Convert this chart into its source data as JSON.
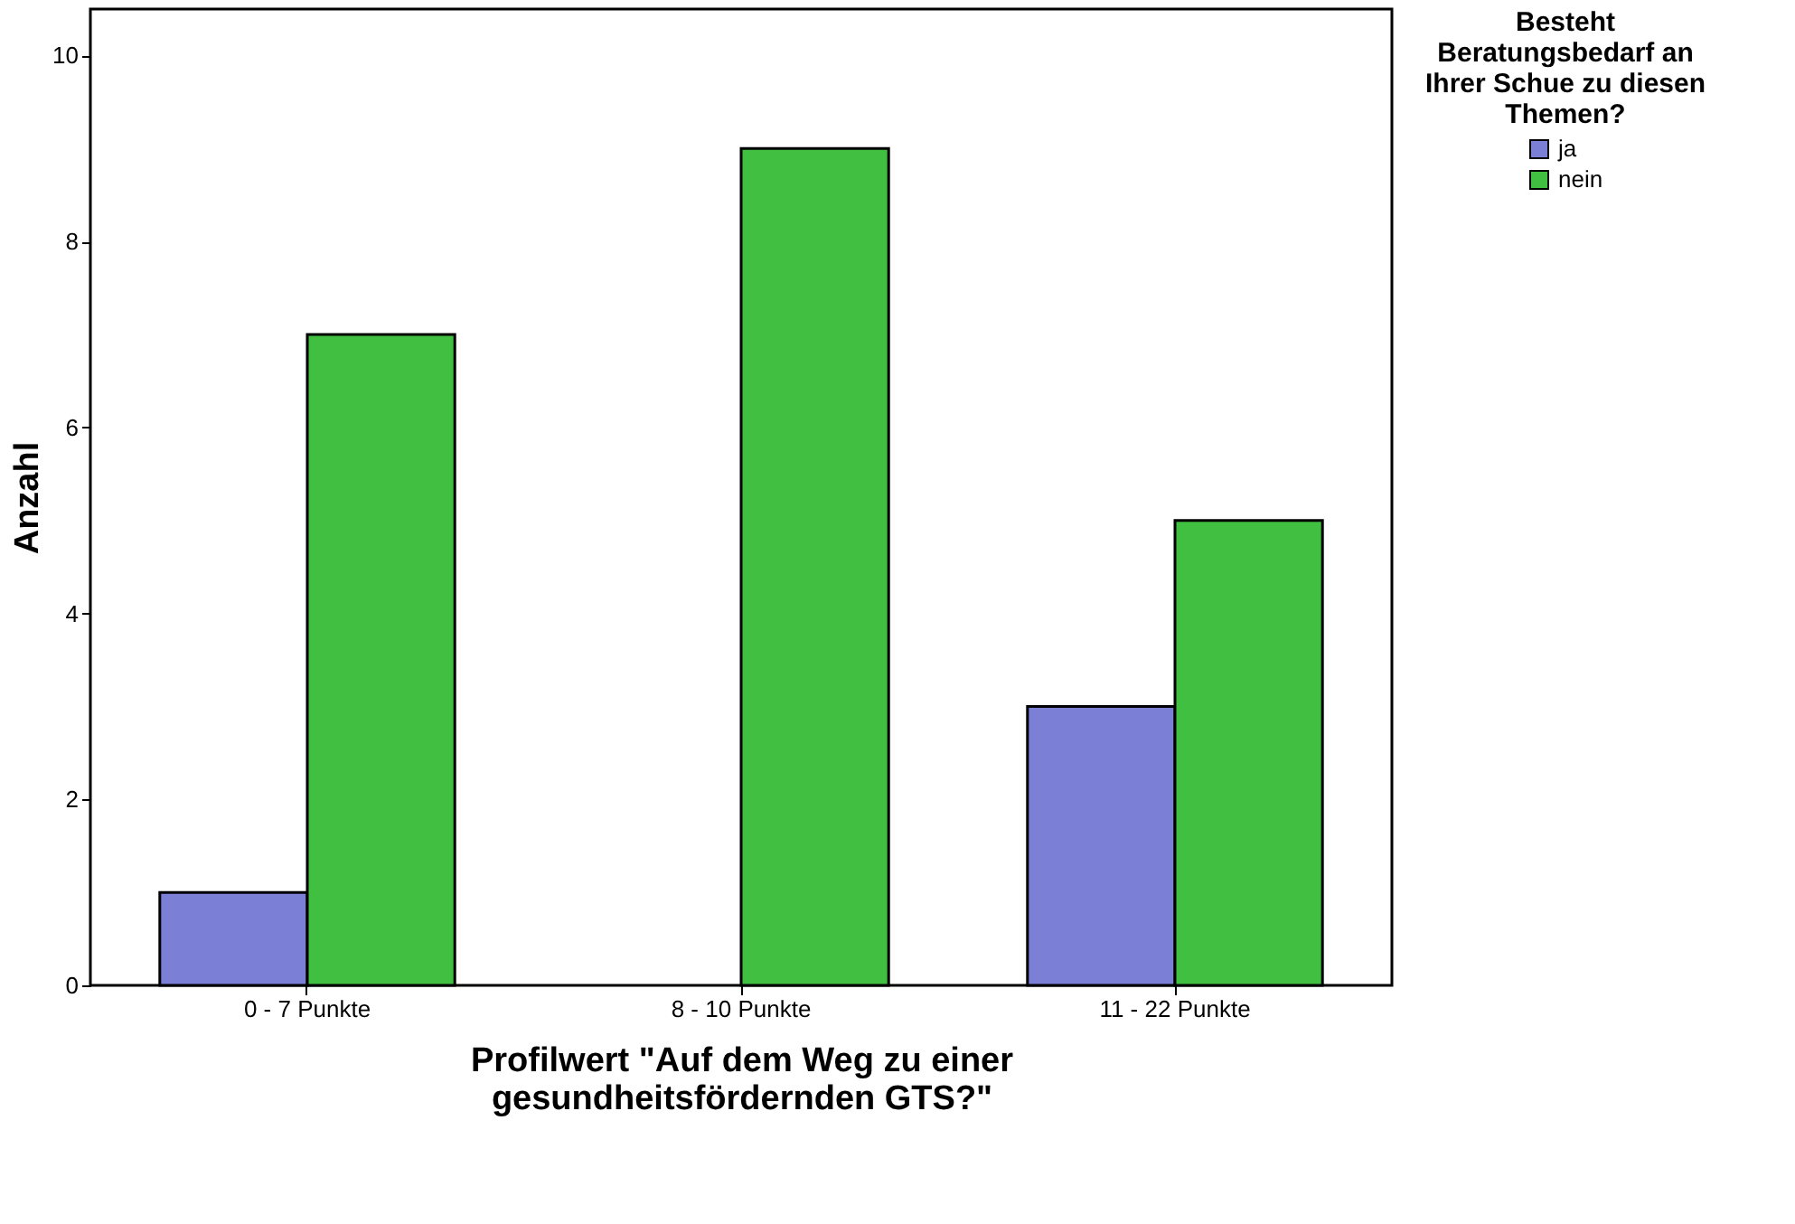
{
  "chart_data": {
    "type": "bar",
    "xlabel": "Profilwert \"Auf dem Weg zu einer gesundheitsfördernden GTS?\"",
    "ylabel": "Anzahl",
    "legend_title": "Besteht Beratungsbedarf an Ihrer Schue zu diesen Themen?",
    "categories": [
      "0 - 7 Punkte",
      "8 - 10 Punkte",
      "11 - 22 Punkte"
    ],
    "series": [
      {
        "name": "ja",
        "color": "#7b7fd6",
        "values": [
          1,
          null,
          3
        ]
      },
      {
        "name": "nein",
        "color": "#40bf40",
        "values": [
          7,
          9,
          5
        ]
      }
    ],
    "ylim": [
      0,
      10.5
    ],
    "yticks": [
      0,
      2,
      4,
      6,
      8,
      10
    ],
    "grid": false,
    "legend": "right"
  }
}
